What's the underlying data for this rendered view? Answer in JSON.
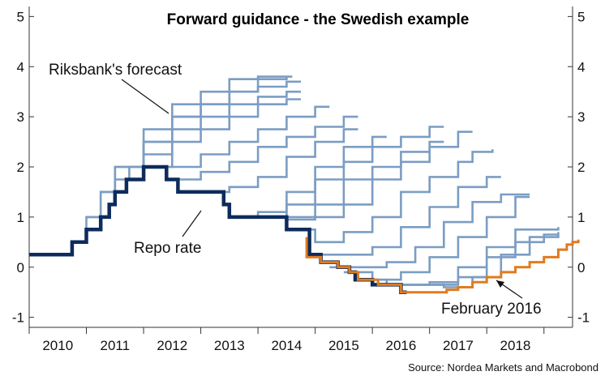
{
  "chart_data": {
    "type": "line",
    "title": "Forward guidance - the Swedish example",
    "source": "Source: Nordea Markets and Macrobond",
    "xlabel": "",
    "ylabel": "",
    "x_ticks": [
      "2010",
      "2011",
      "2012",
      "2013",
      "2014",
      "2015",
      "2016",
      "2017",
      "2018"
    ],
    "xlim": [
      2009.5,
      2019.0
    ],
    "y_ticks": [
      "-1",
      "0",
      "1",
      "2",
      "3",
      "4",
      "5"
    ],
    "ylim": [
      -1.2,
      5.2
    ],
    "grid": false,
    "colors": {
      "forecast": "#7b9dc3",
      "repo": "#0d2b5c",
      "feb2016": "#e07b1f",
      "axis": "#333333"
    },
    "annotations": [
      {
        "text": "Riksbank's forecast",
        "points_to": "Riksbank's forecast"
      },
      {
        "text": "Repo rate",
        "points_to": "Repo rate"
      },
      {
        "text": "February 2016",
        "points_to": "February 2016"
      }
    ],
    "series": [
      {
        "name": "Riksbank's forecast",
        "kind": "forecast-fan",
        "paths": [
          [
            [
              2010.0,
              0.25
            ],
            [
              2010.25,
              0.5
            ],
            [
              2010.5,
              1.0
            ],
            [
              2010.75,
              1.5
            ],
            [
              2011.0,
              2.0
            ],
            [
              2011.5,
              2.5
            ],
            [
              2012.0,
              3.0
            ],
            [
              2012.5,
              3.25
            ],
            [
              2013.0,
              3.5
            ],
            [
              2013.5,
              3.75
            ],
            [
              2014.0,
              3.8
            ]
          ],
          [
            [
              2010.5,
              1.0
            ],
            [
              2010.75,
              1.5
            ],
            [
              2011.0,
              2.0
            ],
            [
              2011.5,
              2.75
            ],
            [
              2012.0,
              3.25
            ],
            [
              2012.5,
              3.5
            ],
            [
              2013.0,
              3.75
            ],
            [
              2013.5,
              3.8
            ],
            [
              2014.0,
              3.8
            ],
            [
              2014.1,
              3.8
            ]
          ],
          [
            [
              2011.0,
              1.75
            ],
            [
              2011.25,
              2.0
            ],
            [
              2011.5,
              2.5
            ],
            [
              2012.0,
              3.0
            ],
            [
              2012.5,
              3.25
            ],
            [
              2013.0,
              3.5
            ],
            [
              2013.5,
              3.6
            ],
            [
              2014.0,
              3.7
            ],
            [
              2014.25,
              3.7
            ]
          ],
          [
            [
              2011.25,
              2.0
            ],
            [
              2011.5,
              2.25
            ],
            [
              2012.0,
              2.75
            ],
            [
              2012.5,
              3.0
            ],
            [
              2013.0,
              3.25
            ],
            [
              2013.5,
              3.4
            ],
            [
              2014.0,
              3.5
            ],
            [
              2014.25,
              3.5
            ]
          ],
          [
            [
              2011.5,
              2.0
            ],
            [
              2012.0,
              2.5
            ],
            [
              2012.5,
              2.75
            ],
            [
              2013.0,
              3.0
            ],
            [
              2013.5,
              3.25
            ],
            [
              2014.0,
              3.35
            ],
            [
              2014.25,
              3.35
            ]
          ],
          [
            [
              2011.75,
              2.0
            ],
            [
              2012.0,
              2.0
            ],
            [
              2012.5,
              2.25
            ],
            [
              2013.0,
              2.5
            ],
            [
              2013.5,
              2.75
            ],
            [
              2014.0,
              3.0
            ],
            [
              2014.5,
              3.2
            ],
            [
              2014.75,
              3.2
            ]
          ],
          [
            [
              2012.0,
              1.75
            ],
            [
              2012.5,
              1.9
            ],
            [
              2013.0,
              2.1
            ],
            [
              2013.5,
              2.4
            ],
            [
              2014.0,
              2.6
            ],
            [
              2014.5,
              2.8
            ],
            [
              2015.0,
              3.0
            ],
            [
              2015.25,
              3.0
            ]
          ],
          [
            [
              2012.5,
              1.5
            ],
            [
              2013.0,
              1.6
            ],
            [
              2013.5,
              1.8
            ],
            [
              2014.0,
              2.2
            ],
            [
              2014.5,
              2.5
            ],
            [
              2015.0,
              2.75
            ],
            [
              2015.25,
              2.75
            ]
          ],
          [
            [
              2013.0,
              1.0
            ],
            [
              2013.5,
              1.1
            ],
            [
              2014.0,
              1.5
            ],
            [
              2014.5,
              2.0
            ],
            [
              2015.0,
              2.4
            ],
            [
              2015.5,
              2.6
            ],
            [
              2015.75,
              2.6
            ]
          ],
          [
            [
              2013.25,
              1.0
            ],
            [
              2013.75,
              1.0
            ],
            [
              2014.0,
              1.25
            ],
            [
              2014.5,
              1.75
            ],
            [
              2015.0,
              2.1
            ],
            [
              2015.5,
              2.4
            ],
            [
              2016.0,
              2.6
            ],
            [
              2016.5,
              2.8
            ],
            [
              2016.75,
              2.8
            ]
          ],
          [
            [
              2013.5,
              1.0
            ],
            [
              2014.0,
              1.0
            ],
            [
              2014.5,
              1.25
            ],
            [
              2015.0,
              1.75
            ],
            [
              2015.5,
              2.0
            ],
            [
              2016.0,
              2.3
            ],
            [
              2016.5,
              2.5
            ],
            [
              2016.75,
              2.5
            ]
          ],
          [
            [
              2013.75,
              1.0
            ],
            [
              2014.0,
              0.95
            ],
            [
              2014.5,
              1.0
            ],
            [
              2015.0,
              1.25
            ],
            [
              2015.5,
              1.75
            ],
            [
              2016.0,
              2.1
            ],
            [
              2016.5,
              2.4
            ],
            [
              2017.0,
              2.7
            ],
            [
              2017.25,
              2.7
            ]
          ],
          [
            [
              2014.25,
              0.75
            ],
            [
              2014.5,
              0.5
            ],
            [
              2015.0,
              0.7
            ],
            [
              2015.5,
              1.0
            ],
            [
              2016.0,
              1.5
            ],
            [
              2016.5,
              1.8
            ],
            [
              2017.0,
              2.1
            ],
            [
              2017.25,
              2.3
            ],
            [
              2017.6,
              2.35
            ]
          ],
          [
            [
              2014.5,
              0.25
            ],
            [
              2015.0,
              0.25
            ],
            [
              2015.5,
              0.4
            ],
            [
              2016.0,
              0.8
            ],
            [
              2016.5,
              1.2
            ],
            [
              2017.0,
              1.6
            ],
            [
              2017.5,
              1.8
            ],
            [
              2017.75,
              1.8
            ]
          ],
          [
            [
              2014.75,
              0.0
            ],
            [
              2015.25,
              0.0
            ],
            [
              2015.75,
              0.1
            ],
            [
              2016.25,
              0.4
            ],
            [
              2016.75,
              0.9
            ],
            [
              2017.25,
              1.3
            ],
            [
              2017.75,
              1.45
            ],
            [
              2018.25,
              1.45
            ]
          ],
          [
            [
              2015.0,
              -0.1
            ],
            [
              2015.5,
              -0.25
            ],
            [
              2016.0,
              -0.1
            ],
            [
              2016.5,
              0.2
            ],
            [
              2017.0,
              0.6
            ],
            [
              2017.5,
              1.0
            ],
            [
              2018.0,
              1.4
            ],
            [
              2018.25,
              1.4
            ]
          ],
          [
            [
              2015.25,
              -0.25
            ],
            [
              2015.75,
              -0.35
            ],
            [
              2016.5,
              -0.3
            ],
            [
              2017.0,
              0.0
            ],
            [
              2017.5,
              0.4
            ],
            [
              2018.0,
              0.75
            ],
            [
              2018.75,
              0.8
            ]
          ],
          [
            [
              2015.75,
              -0.35
            ],
            [
              2016.25,
              -0.35
            ],
            [
              2017.0,
              -0.2
            ],
            [
              2017.5,
              0.2
            ],
            [
              2018.0,
              0.5
            ],
            [
              2018.5,
              0.65
            ],
            [
              2018.75,
              0.65
            ]
          ],
          [
            [
              2016.0,
              -0.35
            ],
            [
              2016.75,
              -0.4
            ],
            [
              2017.25,
              -0.2
            ],
            [
              2017.75,
              0.25
            ],
            [
              2018.25,
              0.6
            ],
            [
              2018.75,
              0.7
            ]
          ]
        ]
      },
      {
        "name": "Repo rate",
        "kind": "step",
        "points": [
          [
            2009.5,
            0.25
          ],
          [
            2010.0,
            0.25
          ],
          [
            2010.25,
            0.5
          ],
          [
            2010.5,
            0.75
          ],
          [
            2010.75,
            1.0
          ],
          [
            2010.9,
            1.25
          ],
          [
            2011.0,
            1.5
          ],
          [
            2011.2,
            1.75
          ],
          [
            2011.5,
            2.0
          ],
          [
            2011.9,
            1.75
          ],
          [
            2012.1,
            1.5
          ],
          [
            2012.5,
            1.5
          ],
          [
            2012.9,
            1.25
          ],
          [
            2013.0,
            1.0
          ],
          [
            2013.9,
            1.0
          ],
          [
            2014.0,
            0.75
          ],
          [
            2014.2,
            0.75
          ],
          [
            2014.4,
            0.25
          ],
          [
            2014.6,
            0.1
          ],
          [
            2014.9,
            0.0
          ],
          [
            2015.1,
            -0.1
          ],
          [
            2015.2,
            -0.25
          ],
          [
            2015.5,
            -0.35
          ],
          [
            2016.0,
            -0.5
          ],
          [
            2016.1,
            -0.5
          ]
        ]
      },
      {
        "name": "February 2016",
        "kind": "step",
        "points": [
          [
            2014.35,
            0.6
          ],
          [
            2014.35,
            0.2
          ],
          [
            2014.6,
            0.1
          ],
          [
            2014.9,
            0.0
          ],
          [
            2015.1,
            -0.1
          ],
          [
            2015.25,
            -0.25
          ],
          [
            2015.6,
            -0.35
          ],
          [
            2016.0,
            -0.5
          ],
          [
            2016.6,
            -0.5
          ],
          [
            2016.8,
            -0.45
          ],
          [
            2017.0,
            -0.4
          ],
          [
            2017.25,
            -0.3
          ],
          [
            2017.5,
            -0.2
          ],
          [
            2017.75,
            -0.1
          ],
          [
            2018.0,
            0.0
          ],
          [
            2018.25,
            0.1
          ],
          [
            2018.5,
            0.2
          ],
          [
            2018.75,
            0.35
          ],
          [
            2018.9,
            0.45
          ],
          [
            2019.0,
            0.5
          ],
          [
            2019.1,
            0.55
          ]
        ]
      }
    ]
  }
}
